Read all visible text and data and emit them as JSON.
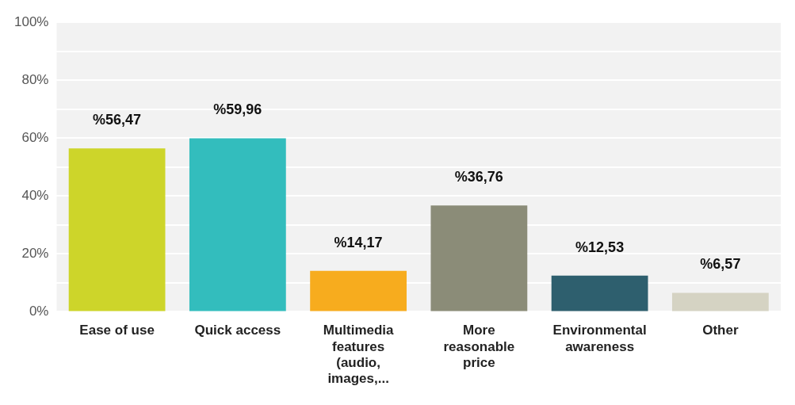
{
  "chart_data": {
    "type": "bar",
    "categories": [
      "Ease of use",
      "Quick access",
      "Multimedia features (audio, images,...",
      "More reasonable price",
      "Environmental awareness",
      "Other"
    ],
    "values": [
      56.47,
      59.96,
      14.17,
      36.76,
      12.53,
      6.57
    ],
    "colors": [
      "#cdd52a",
      "#33bdbd",
      "#f7ac1e",
      "#8b8c78",
      "#2e5f6e",
      "#d5d3c3"
    ],
    "value_labels": [
      "%56,47",
      "%59,96",
      "%14,17",
      "%36,76",
      "%12,53",
      "%6,57"
    ],
    "ylim": [
      0,
      100
    ],
    "yticks": [
      {
        "value": 0,
        "label": "0%"
      },
      {
        "value": 10,
        "label": null
      },
      {
        "value": 20,
        "label": "20%"
      },
      {
        "value": 30,
        "label": null
      },
      {
        "value": 40,
        "label": "40%"
      },
      {
        "value": 50,
        "label": null
      },
      {
        "value": 60,
        "label": "60%"
      },
      {
        "value": 70,
        "label": null
      },
      {
        "value": 80,
        "label": "80%"
      },
      {
        "value": 90,
        "label": null
      },
      {
        "value": 100,
        "label": "100%"
      }
    ],
    "grid": "y",
    "legend": false
  }
}
